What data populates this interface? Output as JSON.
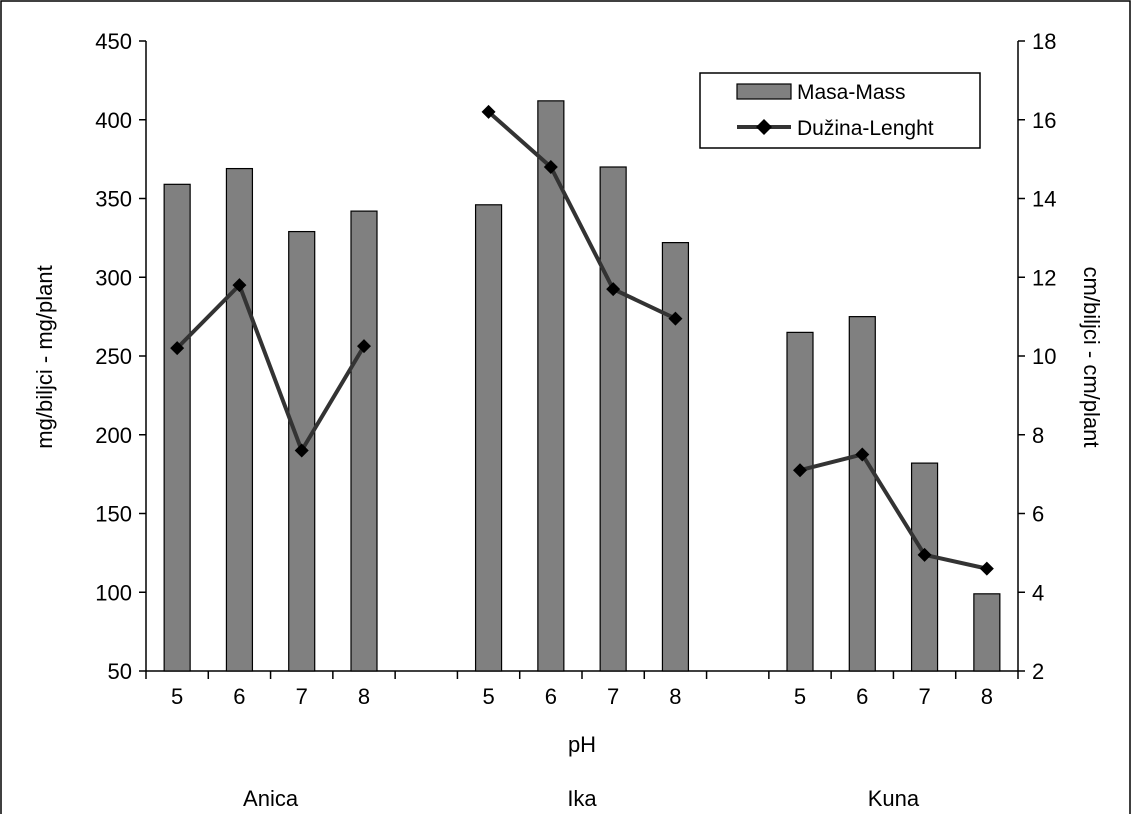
{
  "chart_data": {
    "type": "bar",
    "x_title": "pH",
    "y_title_left": "mg/biljci - mg/plant",
    "y_title_right": "cm/biljci - cm/plant",
    "ylim_left": [
      50,
      450
    ],
    "yticks_left": [
      50,
      100,
      150,
      200,
      250,
      300,
      350,
      400,
      450
    ],
    "ylim_right": [
      2,
      18
    ],
    "yticks_right": [
      2,
      4,
      6,
      8,
      10,
      12,
      14,
      16,
      18
    ],
    "groups": [
      {
        "label": "Anica",
        "ph": [
          "5",
          "6",
          "7",
          "8"
        ]
      },
      {
        "label": "Ika",
        "ph": [
          "5",
          "6",
          "7",
          "8"
        ]
      },
      {
        "label": "Kuna",
        "ph": [
          "5",
          "6",
          "7",
          "8"
        ]
      }
    ],
    "series": [
      {
        "name": "Masa-Mass",
        "kind": "bar",
        "axis": "left",
        "color": "#808080",
        "values": [
          359,
          369,
          329,
          342,
          346,
          412,
          370,
          322,
          265,
          275,
          182,
          99
        ]
      },
      {
        "name": "Dužina-Lenght",
        "kind": "line",
        "axis": "right",
        "color": "#333333",
        "values": [
          10.2,
          11.8,
          7.6,
          10.25,
          16.2,
          14.8,
          11.7,
          10.95,
          7.1,
          7.5,
          4.95,
          4.6
        ]
      }
    ],
    "legend_position": "top-right",
    "grid": false
  }
}
